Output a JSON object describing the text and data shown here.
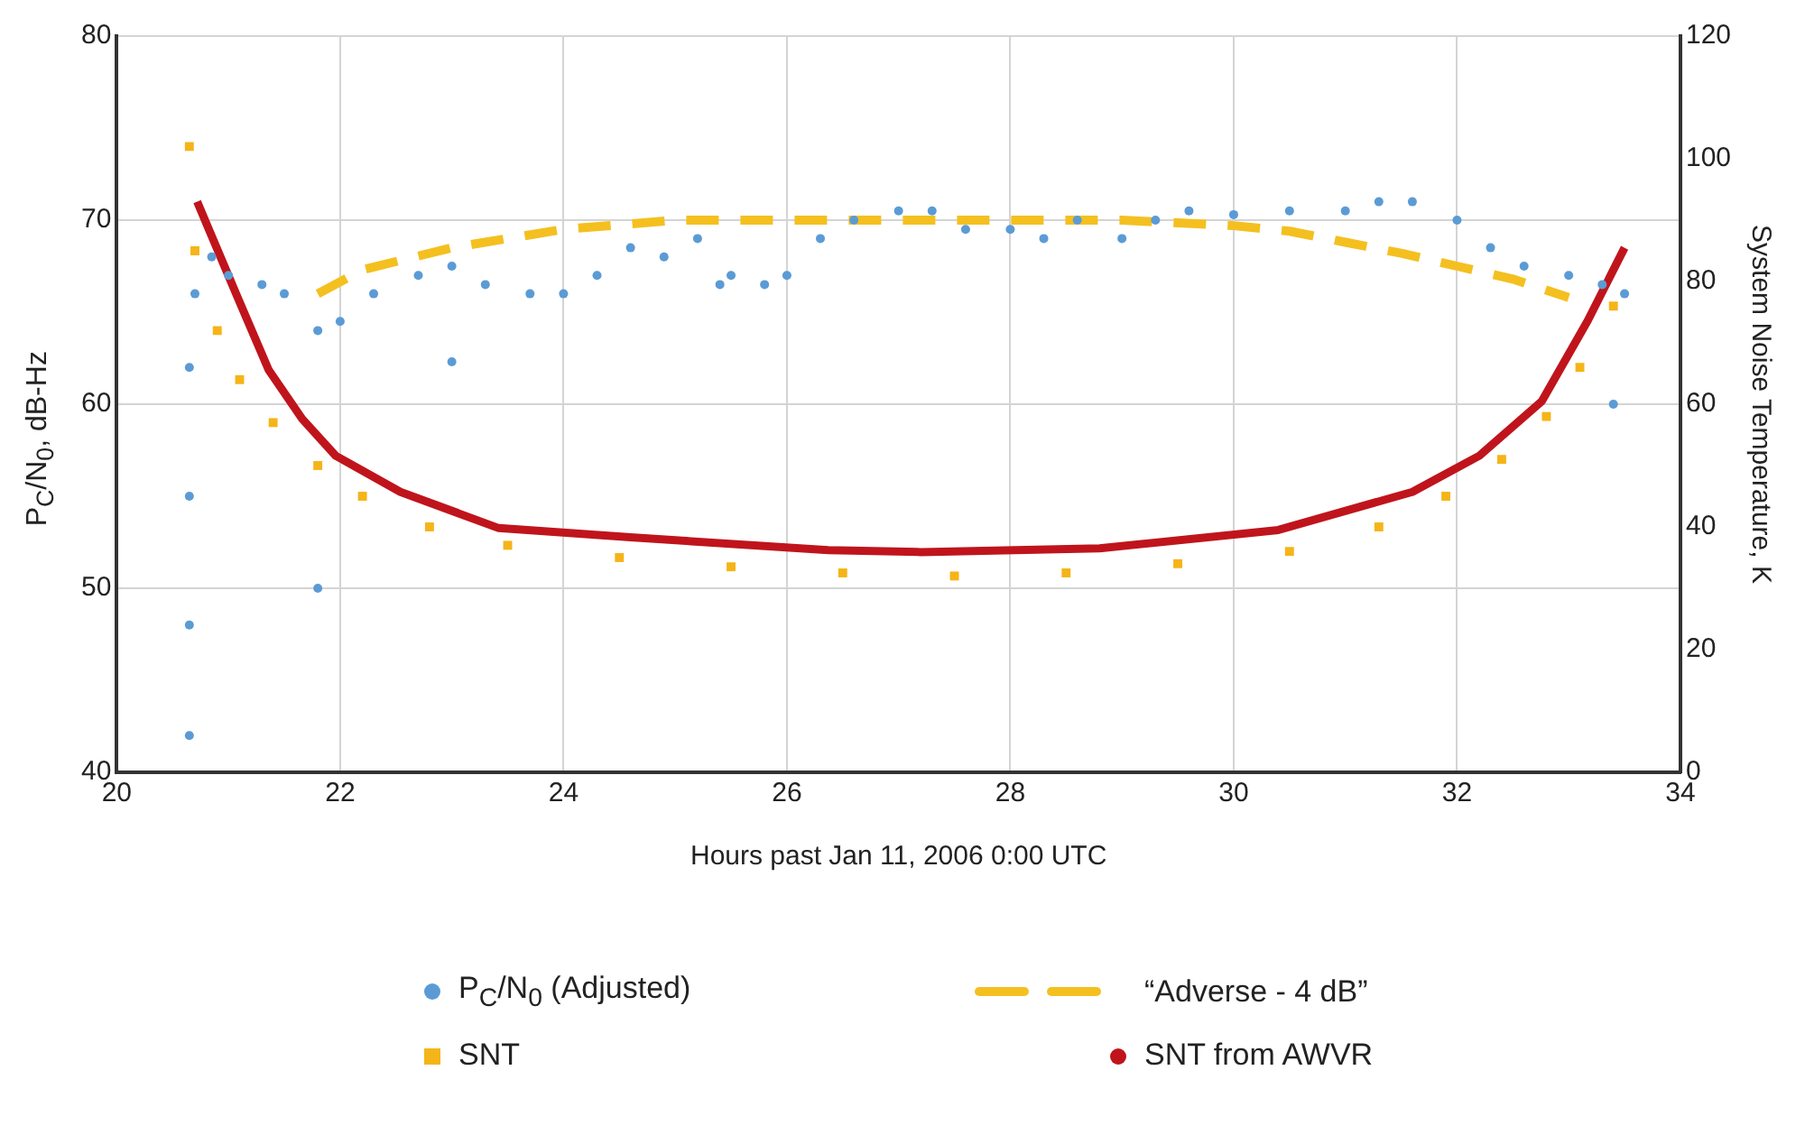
{
  "chart_data": {
    "type": "scatter",
    "xlabel": "Hours past Jan 11, 2006 0:00 UTC",
    "ylabel": "P$_{C}$/N$_{0}$, dB-Hz",
    "y2label": "System Noise Temperature, K",
    "xlim": [
      20,
      34
    ],
    "xticks": [
      20,
      22,
      24,
      26,
      28,
      30,
      32,
      34
    ],
    "ylim": [
      40,
      80
    ],
    "yticks": [
      40,
      50,
      60,
      70,
      80
    ],
    "y2lim": [
      0,
      120
    ],
    "y2ticks": [
      0,
      20,
      40,
      60,
      80,
      100,
      120
    ],
    "grid": true,
    "legend": "bottom",
    "series": [
      {
        "name": "P$_{C}$/N$_{0}$ (Adjusted)",
        "type": "scatter",
        "marker": "circle",
        "color": "#5b9bd5",
        "x": [
          20.65,
          20.65,
          20.65,
          20.65,
          20.7,
          20.85,
          21,
          21.3,
          21.5,
          21.8,
          21.8,
          22,
          22.3,
          22.7,
          23,
          23,
          23.3,
          23.7,
          24,
          24.3,
          24.6,
          24.9,
          25.2,
          25.4,
          25.5,
          25.8,
          26,
          26.3,
          26.6,
          27,
          27.3,
          27.6,
          28,
          28.3,
          28.6,
          29,
          29.3,
          29.6,
          30,
          30.5,
          31,
          31.3,
          31.6,
          32,
          32.3,
          32.6,
          33,
          33.3,
          33.5,
          33.4
        ],
        "values": [
          42,
          48,
          55,
          62,
          66,
          68,
          67,
          66.5,
          66,
          64,
          50,
          64.5,
          66,
          67,
          67.5,
          62.3,
          66.5,
          66,
          66,
          67,
          68.5,
          68,
          69,
          66.5,
          67,
          66.5,
          67,
          69,
          70,
          70.5,
          70.5,
          69.5,
          69.5,
          69,
          70,
          69,
          70,
          70.5,
          70.3,
          70.5,
          70.5,
          71,
          71,
          70,
          68.5,
          67.5,
          67,
          66.5,
          66,
          60
        ]
      },
      {
        "name": "“Adverse - 4 dB”",
        "type": "line",
        "line_style": "dashed",
        "marker": "none",
        "color": "#f4c020",
        "x": [
          21.8,
          22.2,
          23,
          24,
          25,
          26,
          27,
          28,
          29,
          30,
          30.5,
          31,
          31.5,
          32,
          32.5,
          33
        ],
        "values": [
          66,
          67.3,
          68.5,
          69.5,
          70,
          70,
          70,
          70,
          70,
          69.7,
          69.4,
          68.8,
          68.2,
          67.5,
          66.8,
          65.8
        ]
      },
      {
        "name": "SNT",
        "type": "scatter",
        "marker": "square",
        "axis": "y2",
        "color": "#f5b418",
        "x": [
          20.65,
          20.7,
          20.9,
          21.1,
          21.4,
          21.8,
          22.2,
          22.8,
          23.5,
          24.5,
          25.5,
          26.5,
          27.5,
          28.5,
          29.5,
          30.5,
          31.3,
          31.9,
          32.4,
          32.8,
          33.1,
          33.4
        ],
        "values": [
          102,
          85,
          72,
          64,
          57,
          50,
          45,
          40,
          37,
          35,
          33.5,
          32.5,
          32,
          32.5,
          34,
          36,
          40,
          45,
          51,
          58,
          66,
          76
        ]
      },
      {
        "name": "SNT from AWVR",
        "type": "line",
        "line_style": "solid",
        "marker": "none",
        "axis": "y2",
        "color": "#c0141c",
        "x": [
          20.72,
          21.08,
          21.36,
          21.66,
          21.96,
          22.54,
          23.42,
          24.6,
          26.37,
          27.2,
          28.8,
          30.4,
          31.6,
          32.2,
          32.76,
          33.17,
          33.5
        ],
        "values": [
          93,
          77.5,
          65.6,
          57.6,
          51.6,
          45.7,
          39.8,
          38.3,
          36.2,
          35.9,
          36.5,
          39.5,
          45.7,
          51.6,
          60.5,
          73.6,
          85.5
        ]
      }
    ]
  }
}
